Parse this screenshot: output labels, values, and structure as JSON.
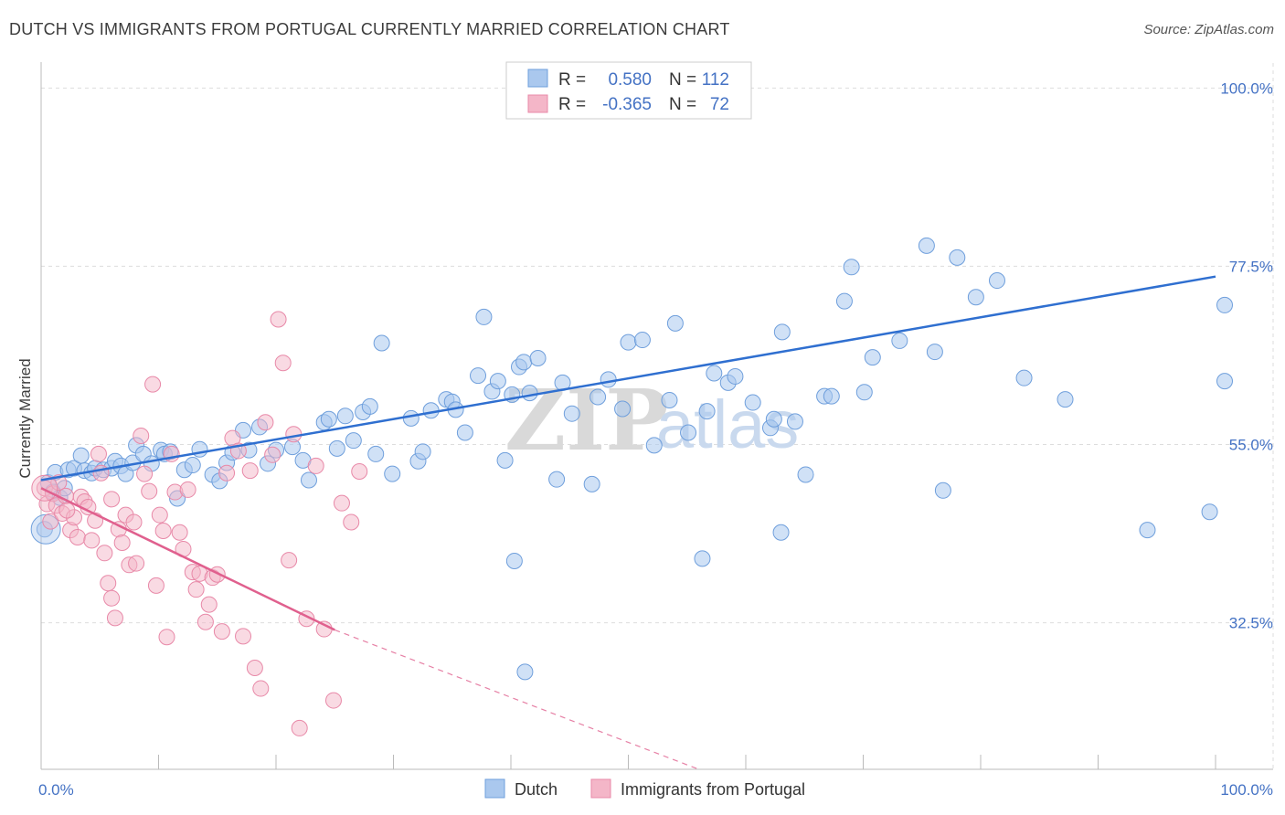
{
  "title": "DUTCH VS IMMIGRANTS FROM PORTUGAL CURRENTLY MARRIED CORRELATION CHART",
  "source": "Source: ZipAtlas.com",
  "watermark": {
    "zip": "ZIP",
    "atlas": "atlas"
  },
  "colors": {
    "blue_fill": "#aac8ee",
    "blue_stroke": "#6f9fdc",
    "blue_line": "#2f6fd0",
    "pink_fill": "#f4b6c8",
    "pink_stroke": "#e889a8",
    "pink_line": "#e0608e",
    "grid": "#dddddd",
    "tick_text": "#4472c4"
  },
  "legend": {
    "rows": [
      {
        "r_label": "R =",
        "r_value": "0.580",
        "n_label": "N =",
        "n_value": "112"
      },
      {
        "r_label": "R =",
        "r_value": "-0.365",
        "n_label": "N =",
        "n_value": "72"
      }
    ]
  },
  "chart_data": {
    "type": "scatter",
    "title": "DUTCH VS IMMIGRANTS FROM PORTUGAL CURRENTLY MARRIED CORRELATION CHART",
    "xlabel": "",
    "ylabel": "Currently Married",
    "xlim": [
      0,
      100
    ],
    "ylim": [
      14,
      102
    ],
    "x_tick_labels": [
      {
        "value": 0,
        "label": "0.0%"
      },
      {
        "value": 100,
        "label": "100.0%"
      }
    ],
    "y_tick_labels": [
      {
        "value": 100,
        "label": "100.0%"
      },
      {
        "value": 77.5,
        "label": "77.5%"
      },
      {
        "value": 55,
        "label": "55.0%"
      },
      {
        "value": 32.5,
        "label": "32.5%"
      }
    ],
    "series": [
      {
        "name": "Dutch",
        "r": 0.58,
        "n": 112,
        "trend": {
          "x": [
            0,
            100
          ],
          "y": [
            50.5,
            76.2
          ],
          "dashed_from": null
        },
        "points": [
          [
            0.3,
            44.3
          ],
          [
            0.6,
            50.2
          ],
          [
            1,
            49
          ],
          [
            1.2,
            51.5
          ],
          [
            1.6,
            48.3
          ],
          [
            2,
            49.5
          ],
          [
            2.3,
            51.8
          ],
          [
            2.8,
            52
          ],
          [
            3.4,
            53.6
          ],
          [
            3.7,
            51.7
          ],
          [
            4.3,
            51.4
          ],
          [
            4.6,
            52
          ],
          [
            5.3,
            51.8
          ],
          [
            6,
            52
          ],
          [
            6.3,
            52.9
          ],
          [
            6.8,
            52.3
          ],
          [
            7.2,
            51.3
          ],
          [
            7.8,
            52.7
          ],
          [
            8.1,
            54.9
          ],
          [
            8.7,
            53.8
          ],
          [
            9.4,
            52.6
          ],
          [
            10.2,
            54.3
          ],
          [
            10.5,
            53.8
          ],
          [
            11,
            54.1
          ],
          [
            11.6,
            48.2
          ],
          [
            12.2,
            51.8
          ],
          [
            12.9,
            52.4
          ],
          [
            13.5,
            54.4
          ],
          [
            14.6,
            51.2
          ],
          [
            15.2,
            50.4
          ],
          [
            15.8,
            52.7
          ],
          [
            16.3,
            54
          ],
          [
            17.2,
            56.8
          ],
          [
            17.7,
            54.3
          ],
          [
            18.6,
            57.2
          ],
          [
            19.3,
            52.6
          ],
          [
            20,
            54.3
          ],
          [
            21.4,
            54.7
          ],
          [
            22.3,
            53
          ],
          [
            22.8,
            50.5
          ],
          [
            24.1,
            57.8
          ],
          [
            24.5,
            58.2
          ],
          [
            25.2,
            54.5
          ],
          [
            25.9,
            58.6
          ],
          [
            26.6,
            55.5
          ],
          [
            27.4,
            59.1
          ],
          [
            28,
            59.8
          ],
          [
            28.5,
            53.8
          ],
          [
            29,
            67.8
          ],
          [
            29.9,
            51.3
          ],
          [
            31.5,
            58.3
          ],
          [
            32.1,
            52.9
          ],
          [
            32.5,
            54.1
          ],
          [
            33.2,
            59.3
          ],
          [
            34.5,
            60.7
          ],
          [
            35,
            60.4
          ],
          [
            35.3,
            59.4
          ],
          [
            36.1,
            56.5
          ],
          [
            37.2,
            63.7
          ],
          [
            37.7,
            71.1
          ],
          [
            38.4,
            61.7
          ],
          [
            38.9,
            63
          ],
          [
            39.5,
            53
          ],
          [
            40.1,
            61.3
          ],
          [
            40.7,
            64.8
          ],
          [
            41.1,
            65.4
          ],
          [
            41.6,
            61.5
          ],
          [
            42.3,
            65.9
          ],
          [
            43.9,
            50.6
          ],
          [
            44.4,
            62.8
          ],
          [
            45.2,
            58.9
          ],
          [
            46.9,
            50
          ],
          [
            47.4,
            61
          ],
          [
            48.3,
            63.2
          ],
          [
            49.5,
            59.5
          ],
          [
            50,
            67.9
          ],
          [
            51.2,
            68.2
          ],
          [
            52.2,
            54.9
          ],
          [
            53.5,
            60.6
          ],
          [
            54,
            70.3
          ],
          [
            55.1,
            56.5
          ],
          [
            56.7,
            59.2
          ],
          [
            57.3,
            64
          ],
          [
            58.5,
            62.8
          ],
          [
            59.1,
            63.6
          ],
          [
            60.6,
            60.3
          ],
          [
            62.1,
            57.1
          ],
          [
            62.4,
            58.2
          ],
          [
            63.1,
            69.2
          ],
          [
            64.2,
            57.9
          ],
          [
            65.1,
            51.2
          ],
          [
            66.7,
            61.1
          ],
          [
            67.3,
            61.1
          ],
          [
            68.4,
            73.1
          ],
          [
            69,
            77.4
          ],
          [
            70.1,
            61.6
          ],
          [
            70.8,
            66
          ],
          [
            73.1,
            68.1
          ],
          [
            75.4,
            80.1
          ],
          [
            76.1,
            66.7
          ],
          [
            76.8,
            49.2
          ],
          [
            78,
            78.6
          ],
          [
            79.6,
            73.6
          ],
          [
            81.4,
            75.7
          ],
          [
            83.7,
            63.4
          ],
          [
            87.2,
            60.7
          ],
          [
            94.2,
            44.2
          ],
          [
            99.5,
            46.5
          ],
          [
            102.4,
            63
          ],
          [
            103.7,
            72.6
          ],
          [
            63,
            43.9
          ],
          [
            56.3,
            40.6
          ],
          [
            41.2,
            26.3
          ],
          [
            40.3,
            40.3
          ]
        ]
      },
      {
        "name": "Immigrants from Portugal",
        "r": -0.365,
        "n": 72,
        "trend": {
          "x": [
            0,
            25
          ],
          "y": [
            49.5,
            31.6
          ],
          "dashed_to": [
            56,
            9.5
          ]
        },
        "points": [
          [
            0.3,
            49.5
          ],
          [
            0.5,
            47.5
          ],
          [
            0.8,
            45.3
          ],
          [
            1,
            48.8
          ],
          [
            1.3,
            47.3
          ],
          [
            1.5,
            50.2
          ],
          [
            1.8,
            46.3
          ],
          [
            2.1,
            48.5
          ],
          [
            2.5,
            44.2
          ],
          [
            2.8,
            45.8
          ],
          [
            3.1,
            43.3
          ],
          [
            3.4,
            48.4
          ],
          [
            3.7,
            47.8
          ],
          [
            4,
            47.1
          ],
          [
            4.3,
            42.9
          ],
          [
            4.6,
            45.4
          ],
          [
            4.9,
            53.8
          ],
          [
            5.1,
            51.4
          ],
          [
            5.4,
            41.3
          ],
          [
            5.7,
            37.5
          ],
          [
            6,
            35.6
          ],
          [
            6.3,
            33.1
          ],
          [
            6.6,
            44.3
          ],
          [
            6.9,
            42.6
          ],
          [
            7.2,
            46.1
          ],
          [
            7.5,
            39.8
          ],
          [
            7.9,
            45.2
          ],
          [
            8.1,
            40
          ],
          [
            8.5,
            56.1
          ],
          [
            8.8,
            51.3
          ],
          [
            9.2,
            49.1
          ],
          [
            9.5,
            62.6
          ],
          [
            9.8,
            37.2
          ],
          [
            10.1,
            46.1
          ],
          [
            10.4,
            44.1
          ],
          [
            10.7,
            30.7
          ],
          [
            11.1,
            53.8
          ],
          [
            11.4,
            49
          ],
          [
            11.8,
            43.9
          ],
          [
            12.1,
            41.8
          ],
          [
            12.5,
            49.3
          ],
          [
            12.9,
            38.9
          ],
          [
            13.2,
            36.7
          ],
          [
            13.5,
            38.7
          ],
          [
            14,
            32.6
          ],
          [
            14.3,
            34.8
          ],
          [
            14.6,
            38.2
          ],
          [
            15,
            38.6
          ],
          [
            15.4,
            31.4
          ],
          [
            15.8,
            51.4
          ],
          [
            16.3,
            55.8
          ],
          [
            16.8,
            54.2
          ],
          [
            17.2,
            30.8
          ],
          [
            17.8,
            51.7
          ],
          [
            18.2,
            26.8
          ],
          [
            18.7,
            24.2
          ],
          [
            19.1,
            57.8
          ],
          [
            19.7,
            53.7
          ],
          [
            20.2,
            70.8
          ],
          [
            20.6,
            65.3
          ],
          [
            21.1,
            40.4
          ],
          [
            21.5,
            56.3
          ],
          [
            22,
            19.2
          ],
          [
            22.6,
            33
          ],
          [
            23.4,
            52.3
          ],
          [
            24.1,
            31.7
          ],
          [
            24.9,
            22.7
          ],
          [
            25.6,
            47.6
          ],
          [
            26.4,
            45.2
          ],
          [
            27.1,
            51.6
          ],
          [
            6,
            48.1
          ],
          [
            2.2,
            46.7
          ]
        ]
      }
    ]
  },
  "bottom_legend": [
    {
      "label": "Dutch"
    },
    {
      "label": "Immigrants from Portugal"
    }
  ]
}
